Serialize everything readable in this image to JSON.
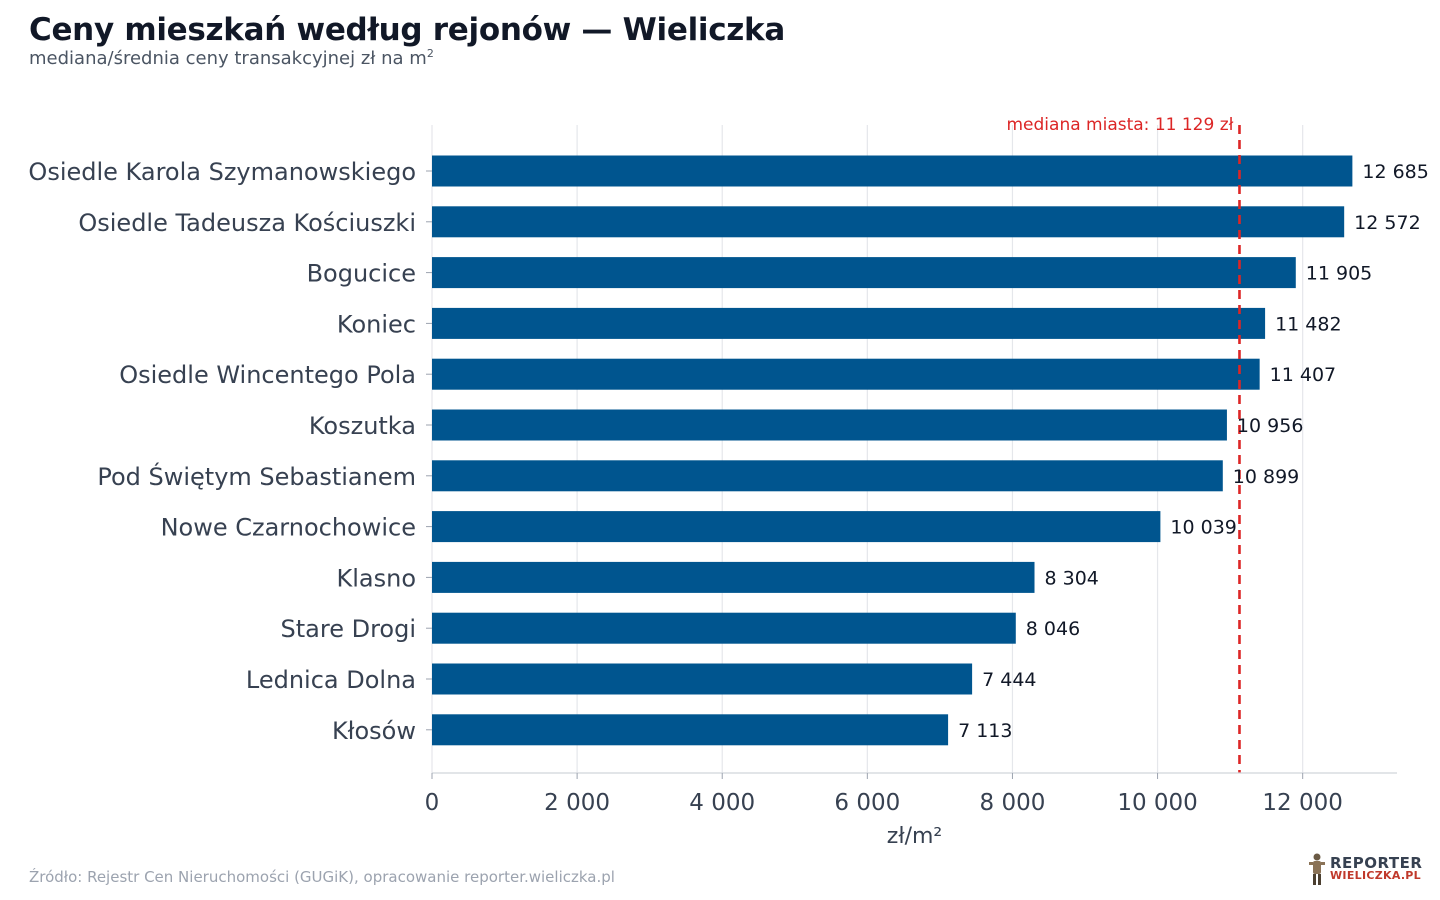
{
  "header": {
    "title": "Ceny mieszkań według rejonów — Wieliczka",
    "subtitle": "mediana/średnia ceny transakcyjnej zł na m",
    "subtitle_sup": "2"
  },
  "chart_data": {
    "type": "bar",
    "orientation": "horizontal",
    "categories": [
      "Osiedle Karola Szymanowskiego",
      "Osiedle Tadeusza Kościuszki",
      "Bogucice",
      "Koniec",
      "Osiedle Wincentego Pola",
      "Koszutka",
      "Pod Świętym Sebastianem",
      "Nowe Czarnochowice",
      "Klasno",
      "Stare Drogi",
      "Lednica Dolna",
      "Kłosów"
    ],
    "values": [
      12685,
      12572,
      11905,
      11482,
      11407,
      10956,
      10899,
      10039,
      8304,
      8046,
      7444,
      7113
    ],
    "value_labels": [
      "12 685",
      "12 572",
      "11 905",
      "11 482",
      "11 407",
      "10 956",
      "10 899",
      "10 039",
      "8 304",
      "8 046",
      "7 444",
      "7 113"
    ],
    "xlabel": "zł/m²",
    "xlim": [
      0,
      13300
    ],
    "xticks": [
      0,
      2000,
      4000,
      6000,
      8000,
      10000,
      12000
    ],
    "xtick_labels": [
      "0",
      "2 000",
      "4 000",
      "6 000",
      "8 000",
      "10 000",
      "12 000"
    ],
    "grid": true,
    "bar_color": "#00558f",
    "reference_line": {
      "value": 11129,
      "label": "mediana miasta: 11 129 zł",
      "color": "#dc2626",
      "style": "dashed"
    }
  },
  "footer": {
    "source": "Źródło: Rejestr Cen Nieruchomości (GUGiK), opracowanie reporter.wieliczka.pl"
  },
  "logo": {
    "line1": "REPORTER",
    "line2": "WIELICZKA.PL"
  }
}
